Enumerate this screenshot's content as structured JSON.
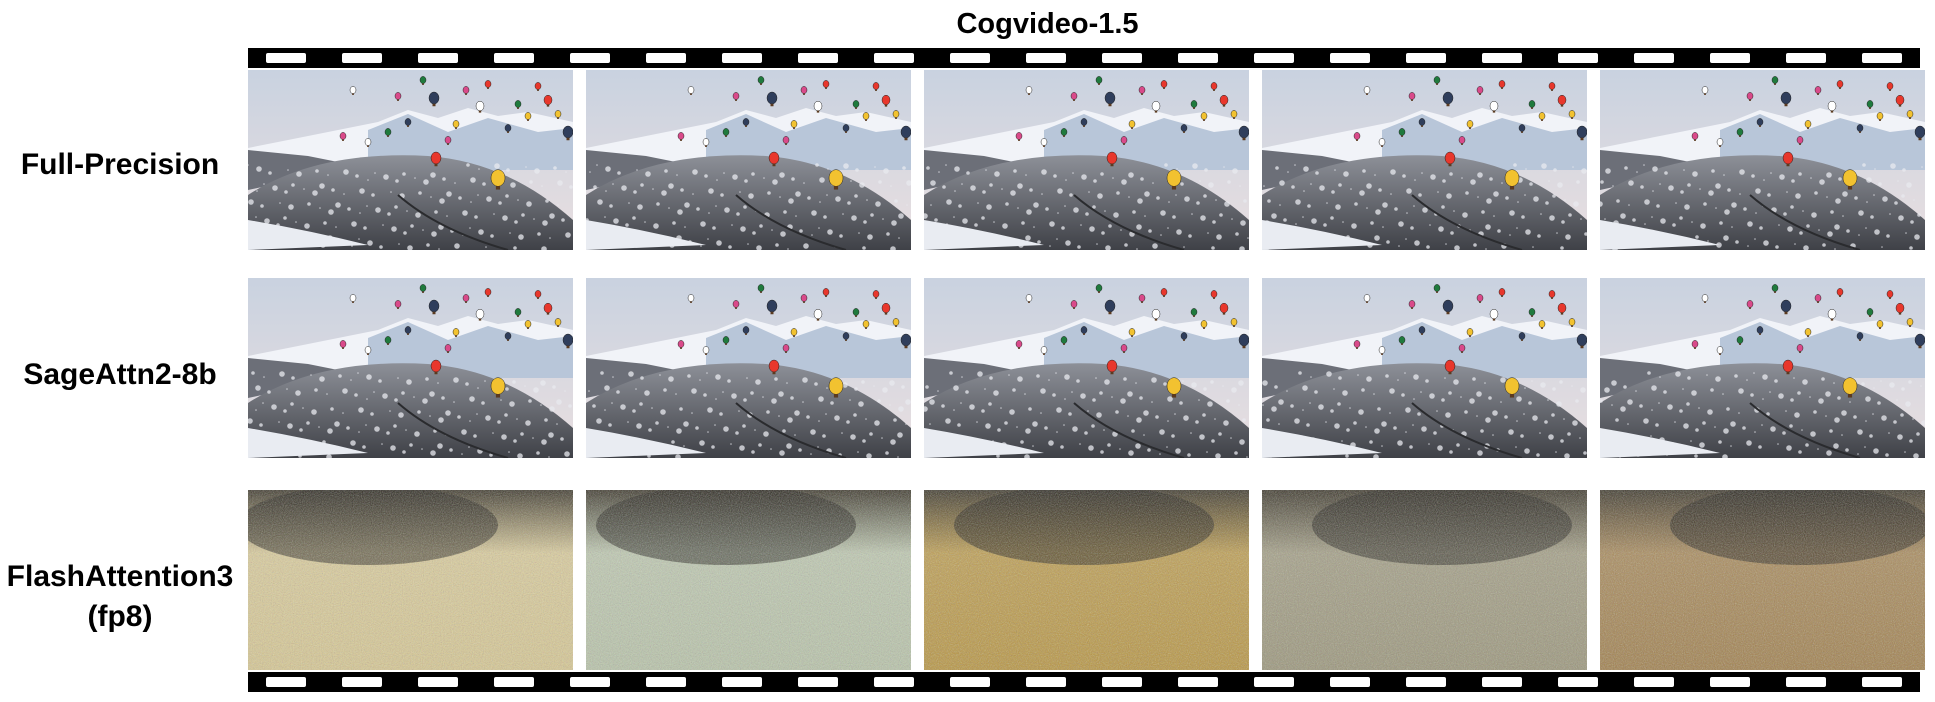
{
  "title": "Cogvideo-1.5",
  "rows": [
    {
      "label_lines": [
        "Full-Precision"
      ],
      "kind": "landscape"
    },
    {
      "label_lines": [
        "SageAttn2-8b"
      ],
      "kind": "landscape"
    },
    {
      "label_lines": [
        "FlashAttention3",
        "(fp8)"
      ],
      "kind": "noise"
    }
  ],
  "frames_per_row": 5,
  "noise_tints": [
    "#d8c890",
    "#b8c4a8",
    "#b8943c",
    "#9a9578",
    "#a07e48"
  ],
  "balloon_colors": [
    "#e8372c",
    "#f2c230",
    "#2f3e5c",
    "#d94a8a",
    "#ffffff",
    "#1f7a3d"
  ]
}
